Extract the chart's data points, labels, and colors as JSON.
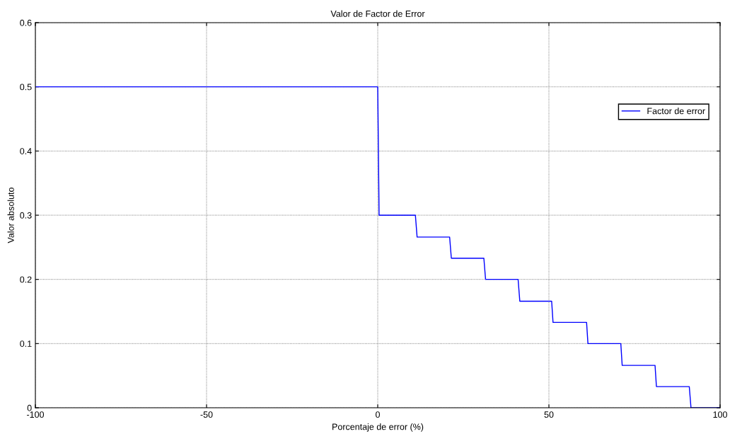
{
  "chart_data": {
    "type": "line",
    "title": "Valor de Factor de Error",
    "xlabel": "Porcentaje de error (%)",
    "ylabel": "Valor absoluto",
    "series": [
      {
        "name": "Factor de error",
        "color": "#0000ff",
        "x": [
          -100,
          0,
          0.4,
          11,
          11.5,
          21,
          21.5,
          31,
          31.5,
          41,
          41.5,
          50.8,
          51.2,
          61,
          61.4,
          71,
          71.4,
          81,
          81.4,
          91,
          91.5,
          100
        ],
        "values": [
          0.5,
          0.5,
          0.3,
          0.3,
          0.266,
          0.266,
          0.233,
          0.233,
          0.2,
          0.2,
          0.166,
          0.166,
          0.133,
          0.133,
          0.1,
          0.1,
          0.066,
          0.066,
          0.033,
          0.033,
          0,
          0
        ]
      }
    ],
    "xlim": [
      -100,
      100
    ],
    "xticks": [
      -100,
      -50,
      0,
      50,
      100
    ],
    "ylim": [
      0,
      0.6
    ],
    "yticks": [
      0,
      0.1,
      0.2,
      0.3,
      0.4,
      0.5,
      0.6
    ],
    "grid": true,
    "legend": "top right",
    "marker": "none",
    "line_style": "solid"
  }
}
